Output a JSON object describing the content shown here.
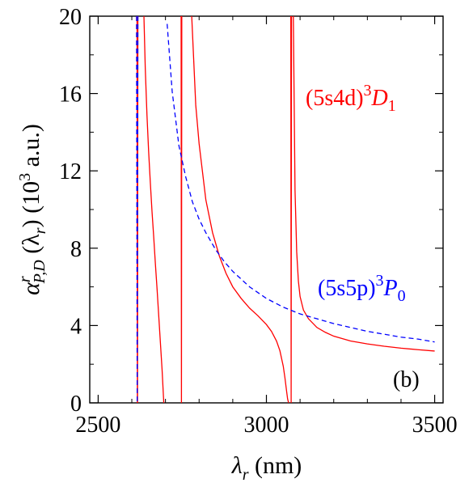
{
  "chart_data": {
    "type": "line",
    "xlim": [
      2475,
      3525
    ],
    "ylim": [
      0,
      20
    ],
    "xticks": [
      2500,
      3000,
      3500
    ],
    "xtick_labels": [
      "2500",
      "3000",
      "3500"
    ],
    "yticks": [
      0,
      4,
      8,
      12,
      16,
      20
    ],
    "ytick_labels": [
      "0",
      "4",
      "8",
      "12",
      "16",
      "20"
    ],
    "xlabel": {
      "sym": "λ",
      "sub": "r",
      "unit": " (nm)"
    },
    "ylabel": {
      "sym": "α",
      "sup": "r",
      "sub": "P,D",
      "arg_open": " (λ",
      "arg_sub": "r",
      "arg_close": ")",
      "unit_open": "   (10",
      "unit_sup": "3",
      "unit_close": " a.u.)"
    },
    "panel_label": "(b)",
    "grid": false,
    "series": [
      {
        "name": "(5s4d)3D1",
        "color": "#ff0000",
        "dash": "solid",
        "segments": [
          {
            "x": [
              2615.5,
              2616.0,
              2616.5,
              2617.0,
              2617.5,
              2618.0
            ],
            "y": [
              20,
              10,
              0,
              0,
              10,
              20
            ]
          },
          {
            "x": [
              2636,
              2640,
              2645,
              2650,
              2655,
              2660,
              2665,
              2670,
              2675,
              2680,
              2685,
              2690,
              2695
            ],
            "y": [
              20,
              17.3,
              14.9,
              13.0,
              11.4,
              9.9,
              8.6,
              7.2,
              5.9,
              4.5,
              3.1,
              1.7,
              0
            ]
          },
          {
            "x": [
              2746.5,
              2747.0,
              2747.5,
              2748.0,
              2748.5
            ],
            "y": [
              20,
              10,
              0,
              10,
              20
            ]
          },
          {
            "x": [
              2778,
              2790,
              2800,
              2820,
              2840,
              2860,
              2880,
              2900,
              2925,
              2950,
              2975,
              3000,
              3015,
              3030,
              3040,
              3050,
              3055,
              3060,
              3063,
              3066
            ],
            "y": [
              20,
              15.4,
              13.4,
              10.5,
              8.8,
              7.6,
              6.7,
              6.0,
              5.4,
              4.9,
              4.5,
              4.05,
              3.7,
              3.2,
              2.7,
              1.9,
              1.3,
              0.6,
              0.2,
              0
            ]
          },
          {
            "x": [
              3072.5,
              3073.0,
              3073.5,
              3074.0,
              3074.5
            ],
            "y": [
              20,
              10,
              0,
              10,
              20
            ]
          },
          {
            "x": [
              3080,
              3085,
              3090,
              3095,
              3100,
              3110,
              3125,
              3150,
              3175,
              3200,
              3250,
              3300,
              3350,
              3400,
              3450,
              3500
            ],
            "y": [
              20,
              11,
              7.8,
              6.3,
              5.5,
              4.8,
              4.35,
              3.9,
              3.65,
              3.45,
              3.2,
              3.05,
              2.93,
              2.83,
              2.75,
              2.68
            ]
          }
        ]
      },
      {
        "name": "(5s5p)3P0",
        "color": "#0000ff",
        "dash": "dashed",
        "segments": [
          {
            "x": [
              2614,
              2615,
              2616,
              2617,
              2618
            ],
            "y": [
              20,
              10,
              0,
              10,
              20
            ]
          },
          {
            "x": [
              2705,
              2720,
              2740,
              2760,
              2780,
              2800,
              2820,
              2850,
              2875,
              2900,
              2950,
              3000,
              3050,
              3100,
              3150,
              3200,
              3250,
              3300,
              3350,
              3400,
              3450,
              3500
            ],
            "y": [
              19.6,
              16.1,
              13.3,
              11.7,
              10.4,
              9.5,
              8.8,
              7.9,
              7.3,
              6.8,
              6.0,
              5.4,
              4.95,
              4.6,
              4.35,
              4.1,
              3.9,
              3.7,
              3.55,
              3.4,
              3.3,
              3.15
            ]
          }
        ]
      }
    ],
    "annotations": [
      {
        "id": "red",
        "text": "(5s4d)",
        "sup": "3",
        "main": "D",
        "sub": "1",
        "color": "#ff0000"
      },
      {
        "id": "blue",
        "text": "(5s5p)",
        "sup": "3",
        "main": "P",
        "sub": "0",
        "color": "#0000ff"
      }
    ]
  }
}
